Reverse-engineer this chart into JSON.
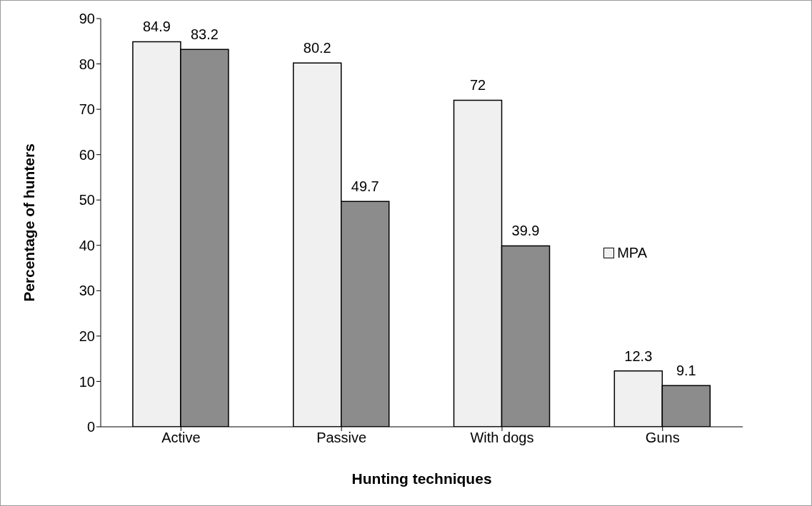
{
  "chart_data": {
    "type": "bar",
    "xlabel": "Hunting techniques",
    "ylabel": "Percentage of hunters",
    "categories": [
      "Active",
      "Passive",
      "With dogs",
      "Guns"
    ],
    "series": [
      {
        "name": "MPA",
        "color": "#f0f0f0",
        "values": [
          84.9,
          80.2,
          72,
          12.3
        ]
      },
      {
        "color": "#8c8c8c",
        "values": [
          83.2,
          49.7,
          39.9,
          9.1
        ]
      }
    ],
    "ylim": [
      0,
      90
    ],
    "yticks": [
      0,
      10,
      20,
      30,
      40,
      50,
      60,
      70,
      80,
      90
    ],
    "grid": false,
    "legend": "right",
    "data_labels": true
  }
}
